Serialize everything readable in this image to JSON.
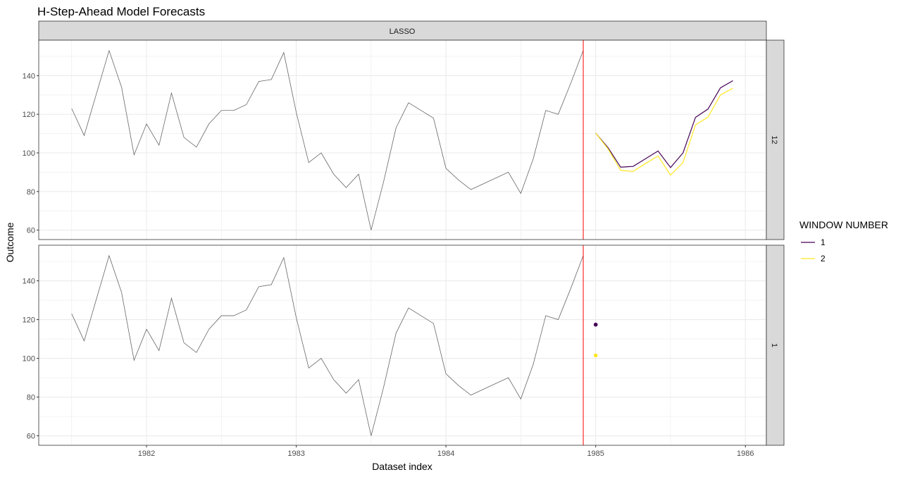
{
  "chart_data": {
    "type": "line",
    "title": "H-Step-Ahead Model Forecasts",
    "xlabel": "Dataset index",
    "ylabel": "Outcome",
    "facet_column": "LASSO",
    "facet_rows": [
      "12",
      "1"
    ],
    "xlim": [
      1981.28,
      1986.14
    ],
    "ylim": [
      55.1,
      158.4
    ],
    "x_ticks": [
      1982,
      1983,
      1984,
      1985,
      1986
    ],
    "y_ticks": [
      60,
      80,
      100,
      120,
      140
    ],
    "grid": true,
    "cutoff_line": {
      "x": 1984.917,
      "color": "#FF0000"
    },
    "actual": {
      "color": "#666666",
      "start": 1981.5,
      "step": 0.08333,
      "values": [
        123,
        109,
        131,
        153,
        134,
        99,
        115,
        104,
        131,
        108,
        103,
        115,
        122,
        122,
        125,
        137,
        138,
        152,
        121,
        95,
        100,
        89,
        82,
        89,
        60,
        85,
        113,
        126,
        122,
        118,
        92,
        86,
        81,
        84,
        87,
        90,
        79,
        97,
        122,
        120,
        136,
        153
      ]
    },
    "legend": {
      "title": "WINDOW NUMBER",
      "position": "right"
    },
    "series": [
      {
        "name": "1",
        "color": "#440154",
        "panels": {
          "12": {
            "start": 1985.0,
            "step": 0.08333,
            "values": [
              110.2,
              102.6,
              92.6,
              93,
              97,
              101,
              92.4,
              100,
              118.4,
              122.7,
              133.7,
              137.4
            ]
          },
          "1": {
            "start": 1985.0,
            "step": 0.08333,
            "values": [
              117.4
            ]
          }
        }
      },
      {
        "name": "2",
        "color": "#FDE725",
        "panels": {
          "12": {
            "start": 1985.0,
            "step": 0.08333,
            "values": [
              110.2,
              102,
              91,
              90.4,
              94.5,
              98.4,
              88.5,
              95,
              114.5,
              118.5,
              130,
              133.5
            ]
          },
          "1": {
            "start": 1985.0,
            "step": 0.08333,
            "values": [
              101.5
            ]
          }
        }
      }
    ]
  }
}
